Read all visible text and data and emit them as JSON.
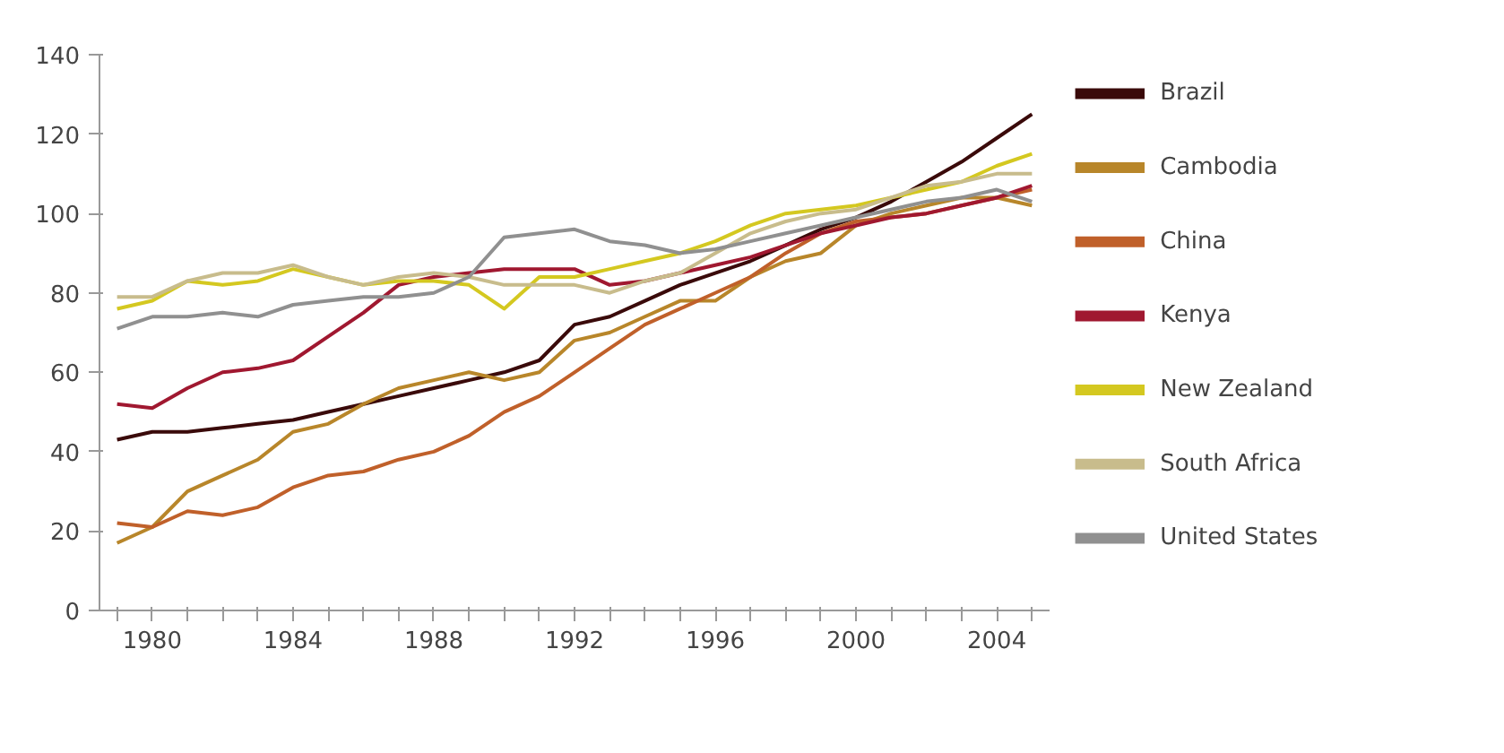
{
  "chart_data": {
    "type": "line",
    "x": [
      1979,
      1980,
      1981,
      1982,
      1983,
      1984,
      1985,
      1986,
      1987,
      1988,
      1989,
      1990,
      1991,
      1992,
      1993,
      1994,
      1995,
      1996,
      1997,
      1998,
      1999,
      2000,
      2001,
      2002,
      2003,
      2004,
      2005
    ],
    "series": [
      {
        "name": "Brazil",
        "color": "#3a0a0a",
        "values": [
          43,
          45,
          45,
          46,
          47,
          48,
          50,
          52,
          54,
          56,
          58,
          60,
          63,
          72,
          74,
          78,
          82,
          85,
          88,
          92,
          96,
          99,
          103,
          108,
          113,
          119,
          125
        ]
      },
      {
        "name": "Cambodia",
        "color": "#b8862a",
        "values": [
          17,
          21,
          30,
          34,
          38,
          45,
          47,
          52,
          56,
          58,
          60,
          58,
          60,
          68,
          70,
          74,
          78,
          78,
          84,
          88,
          90,
          97,
          100,
          102,
          104,
          104,
          102
        ]
      },
      {
        "name": "China",
        "color": "#c0602a",
        "values": [
          22,
          21,
          25,
          24,
          26,
          31,
          34,
          35,
          38,
          40,
          44,
          50,
          54,
          60,
          66,
          72,
          76,
          80,
          84,
          90,
          95,
          98,
          99,
          100,
          102,
          104,
          106
        ]
      },
      {
        "name": "Kenya",
        "color": "#a01830",
        "values": [
          52,
          51,
          56,
          60,
          61,
          63,
          69,
          75,
          82,
          84,
          85,
          86,
          86,
          86,
          82,
          83,
          85,
          87,
          89,
          92,
          95,
          97,
          99,
          100,
          102,
          104,
          107
        ]
      },
      {
        "name": "New Zealand",
        "color": "#d4c820",
        "values": [
          76,
          78,
          83,
          82,
          83,
          86,
          84,
          82,
          83,
          83,
          82,
          76,
          84,
          84,
          86,
          88,
          90,
          93,
          97,
          100,
          101,
          102,
          104,
          106,
          108,
          112,
          115
        ]
      },
      {
        "name": "South Africa",
        "color": "#c8bc8c",
        "values": [
          79,
          79,
          83,
          85,
          85,
          87,
          84,
          82,
          84,
          85,
          84,
          82,
          82,
          82,
          80,
          83,
          85,
          90,
          95,
          98,
          100,
          101,
          104,
          107,
          108,
          110,
          110
        ]
      },
      {
        "name": "United States",
        "color": "#909090",
        "values": [
          71,
          74,
          74,
          75,
          74,
          77,
          78,
          79,
          79,
          80,
          84,
          94,
          95,
          96,
          93,
          92,
          90,
          91,
          93,
          95,
          97,
          99,
          101,
          103,
          104,
          106,
          103
        ]
      }
    ],
    "xlim": [
      1978.5,
      2005.5
    ],
    "ylim": [
      0,
      140
    ],
    "xticks": [
      {
        "value": 1979,
        "label": null
      },
      1980,
      {
        "value": 1981,
        "label": null
      },
      {
        "value": 1982,
        "label": null
      },
      {
        "value": 1983,
        "label": null
      },
      1984,
      {
        "value": 1985,
        "label": null
      },
      {
        "value": 1986,
        "label": null
      },
      {
        "value": 1987,
        "label": null
      },
      1988,
      {
        "value": 1989,
        "label": null
      },
      {
        "value": 1990,
        "label": null
      },
      {
        "value": 1991,
        "label": null
      },
      1992,
      {
        "value": 1993,
        "label": null
      },
      {
        "value": 1994,
        "label": null
      },
      {
        "value": 1995,
        "label": null
      },
      1996,
      {
        "value": 1997,
        "label": null
      },
      {
        "value": 1998,
        "label": null
      },
      {
        "value": 1999,
        "label": null
      },
      2000,
      {
        "value": 2001,
        "label": null
      },
      {
        "value": 2002,
        "label": null
      },
      {
        "value": 2003,
        "label": null
      },
      2004,
      {
        "value": 2005,
        "label": null
      }
    ],
    "yticks": [
      0,
      20,
      40,
      60,
      80,
      100,
      120,
      140
    ],
    "grid": false,
    "legend": "right",
    "marker": "none",
    "line_style": "solid"
  }
}
